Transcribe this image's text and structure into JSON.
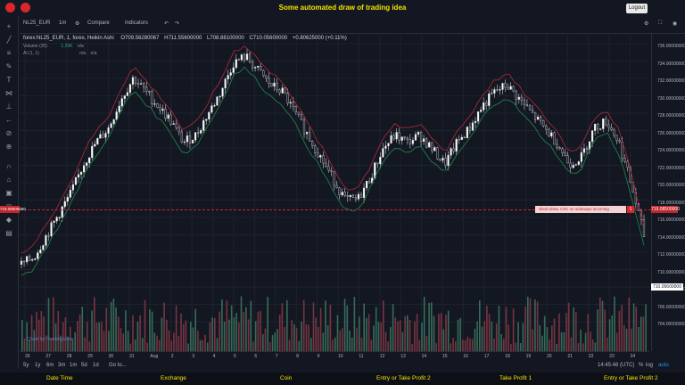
{
  "header": {
    "title": "Some automated draw of trading idea",
    "logout_label": "Logout"
  },
  "toolbar": {
    "symbol": "NL25_EUR",
    "interval": "1m",
    "compare": "Compare",
    "indicators": "Indicators"
  },
  "legend": {
    "main": "forex:NL25_EUR, 1, forex, Heikin Ashi",
    "open": "O709.56280067",
    "high": "H711.55600000",
    "low": "L708.88100000",
    "close": "C710.05600000",
    "change": "+0.80625000 (+0.11%)",
    "volume": "Volume (20)",
    "volume_value": "1.29K",
    "volume_na": "n/a",
    "ai": "AI (1, 1)",
    "ai_na1": "n/a",
    "ai_na2": "n/a"
  },
  "price_axis": {
    "labels": [
      "736.00000000",
      "734.00000000",
      "732.00000000",
      "730.00000000",
      "728.00000000",
      "726.00000000",
      "724.00000000",
      "722.00000000",
      "720.00000000",
      "718.00000000",
      "716.00000000",
      "714.00000000",
      "712.00000000",
      "710.00000000",
      "708.00000000",
      "706.00000000",
      "704.00000000"
    ],
    "hline_price": "719.08500000",
    "current_price": "710.05600000",
    "left_hline_price": "719.08500000"
  },
  "annotation": {
    "text": "Short draw, CSC on sideways incoming",
    "button": "1"
  },
  "time_axis": {
    "labels": [
      "26",
      "27",
      "28",
      "29",
      "30",
      "31",
      "Aug",
      "2",
      "3",
      "4",
      "5",
      "6",
      "7",
      "8",
      "9",
      "10",
      "11",
      "12",
      "13",
      "14",
      "15",
      "16",
      "17",
      "18",
      "19",
      "20",
      "21",
      "22",
      "23",
      "24"
    ]
  },
  "bottom_bar": {
    "ranges": [
      "5y",
      "1y",
      "6m",
      "3m",
      "1m",
      "5d",
      "1d"
    ],
    "goto": "Go to...",
    "time": "14:45:46 (UTC)",
    "pct": "%",
    "log": "log",
    "auto": "auto"
  },
  "watermark": "Chart by TradingView",
  "footer": {
    "columns": [
      "Date Time",
      "Exchange",
      "Coin",
      "Entry or Take Profit 2",
      "Take Profit 1",
      "Entry or Take Profit 2"
    ]
  },
  "chart_data": {
    "type": "line",
    "x": [
      0,
      2,
      4,
      6,
      8,
      10,
      12,
      14,
      16,
      18,
      20,
      22,
      24,
      26,
      28,
      30,
      32,
      34,
      36,
      38,
      40,
      42,
      44,
      46,
      48,
      50,
      52,
      54,
      56,
      58,
      60,
      62,
      64,
      66,
      68,
      70,
      72,
      74,
      76,
      78,
      80,
      82,
      84,
      86,
      88,
      90,
      92,
      94,
      96,
      98,
      100
    ],
    "series": [
      {
        "values": [
          707,
          708,
          711,
          714,
          717,
          721,
          724,
          726,
          730,
          733,
          731,
          729,
          727,
          724,
          725,
          728,
          731,
          735,
          736,
          734,
          732,
          731,
          728,
          725,
          722,
          719,
          716,
          716,
          719,
          723,
          725,
          724,
          725,
          723,
          721,
          724,
          726,
          729,
          731,
          732,
          730,
          728,
          726,
          724,
          721,
          722,
          726,
          727,
          724,
          718,
          711
        ]
      }
    ],
    "ylim": [
      702,
      738
    ],
    "grid": true
  }
}
